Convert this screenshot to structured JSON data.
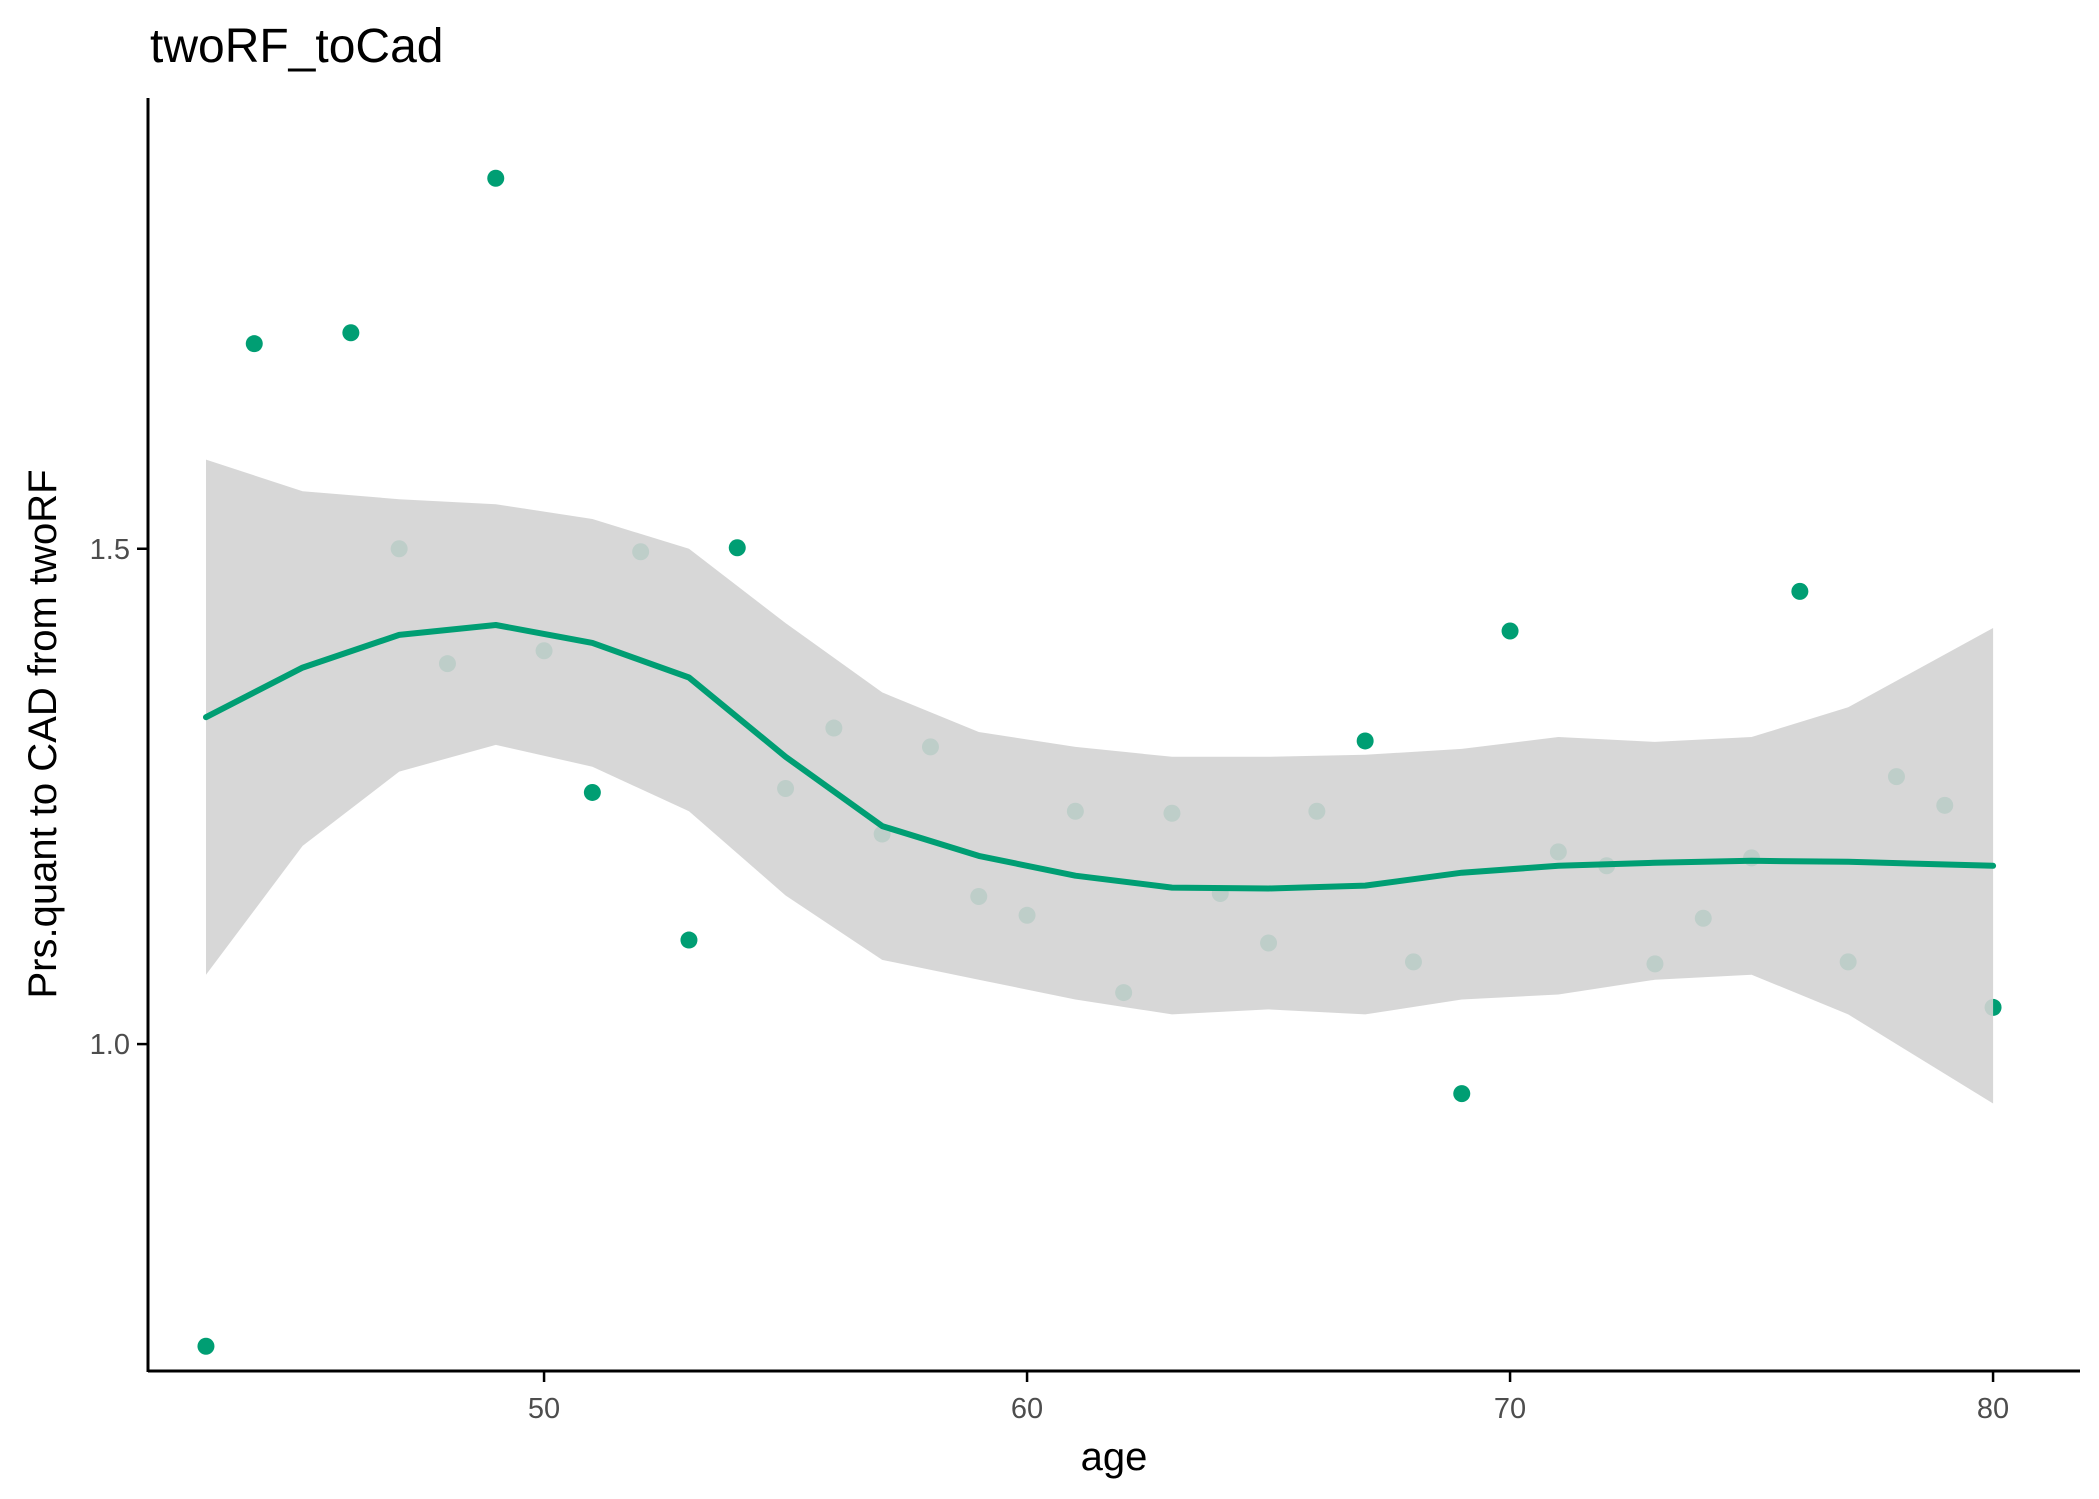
{
  "chart_data": {
    "type": "scatter",
    "title": "twoRF_toCad",
    "xlabel": "age",
    "ylabel": "Prs.quant to CAD from twoRF",
    "xlim": [
      41.8,
      81.8
    ],
    "ylim": [
      0.67,
      1.955
    ],
    "xticks": [
      50,
      60,
      70,
      80
    ],
    "yticks": [
      1.0,
      1.5
    ],
    "ytick_labels": [
      "1.0",
      "1.5"
    ],
    "grid": false,
    "legend": "none",
    "colors": {
      "points": "#009E73",
      "smooth_line": "#009E73",
      "confidence_band": "#D3D3D3"
    },
    "points": {
      "x": [
        43,
        44,
        46,
        47,
        48,
        49,
        50,
        51,
        52,
        53,
        54,
        55,
        56,
        57,
        58,
        59,
        60,
        61,
        62,
        63,
        64,
        65,
        66,
        67,
        68,
        69,
        70,
        71,
        72,
        73,
        74,
        75,
        76,
        77,
        78,
        79,
        80
      ],
      "y": [
        0.695,
        1.707,
        1.718,
        1.5,
        1.384,
        1.874,
        1.397,
        1.254,
        1.497,
        1.105,
        1.501,
        1.258,
        1.319,
        1.212,
        1.3,
        1.149,
        1.13,
        1.235,
        1.052,
        1.233,
        1.152,
        1.102,
        1.235,
        1.306,
        1.083,
        0.95,
        1.417,
        1.194,
        1.18,
        1.081,
        1.127,
        1.188,
        1.457,
        1.083,
        1.27,
        1.241,
        1.037
      ]
    },
    "smooth": {
      "x": [
        43,
        45,
        47,
        49,
        51,
        53,
        55,
        57,
        59,
        61,
        63,
        65,
        67,
        69,
        71,
        73,
        75,
        77,
        80
      ],
      "y": [
        1.33,
        1.38,
        1.413,
        1.423,
        1.405,
        1.37,
        1.29,
        1.22,
        1.19,
        1.17,
        1.158,
        1.157,
        1.16,
        1.173,
        1.18,
        1.183,
        1.185,
        1.184,
        1.18
      ],
      "lower": [
        1.07,
        1.2,
        1.275,
        1.302,
        1.28,
        1.235,
        1.15,
        1.085,
        1.065,
        1.045,
        1.03,
        1.035,
        1.03,
        1.045,
        1.05,
        1.065,
        1.07,
        1.03,
        0.94
      ],
      "upper": [
        1.59,
        1.558,
        1.55,
        1.545,
        1.53,
        1.5,
        1.425,
        1.355,
        1.315,
        1.3,
        1.29,
        1.29,
        1.292,
        1.298,
        1.31,
        1.305,
        1.31,
        1.34,
        1.42
      ]
    }
  }
}
